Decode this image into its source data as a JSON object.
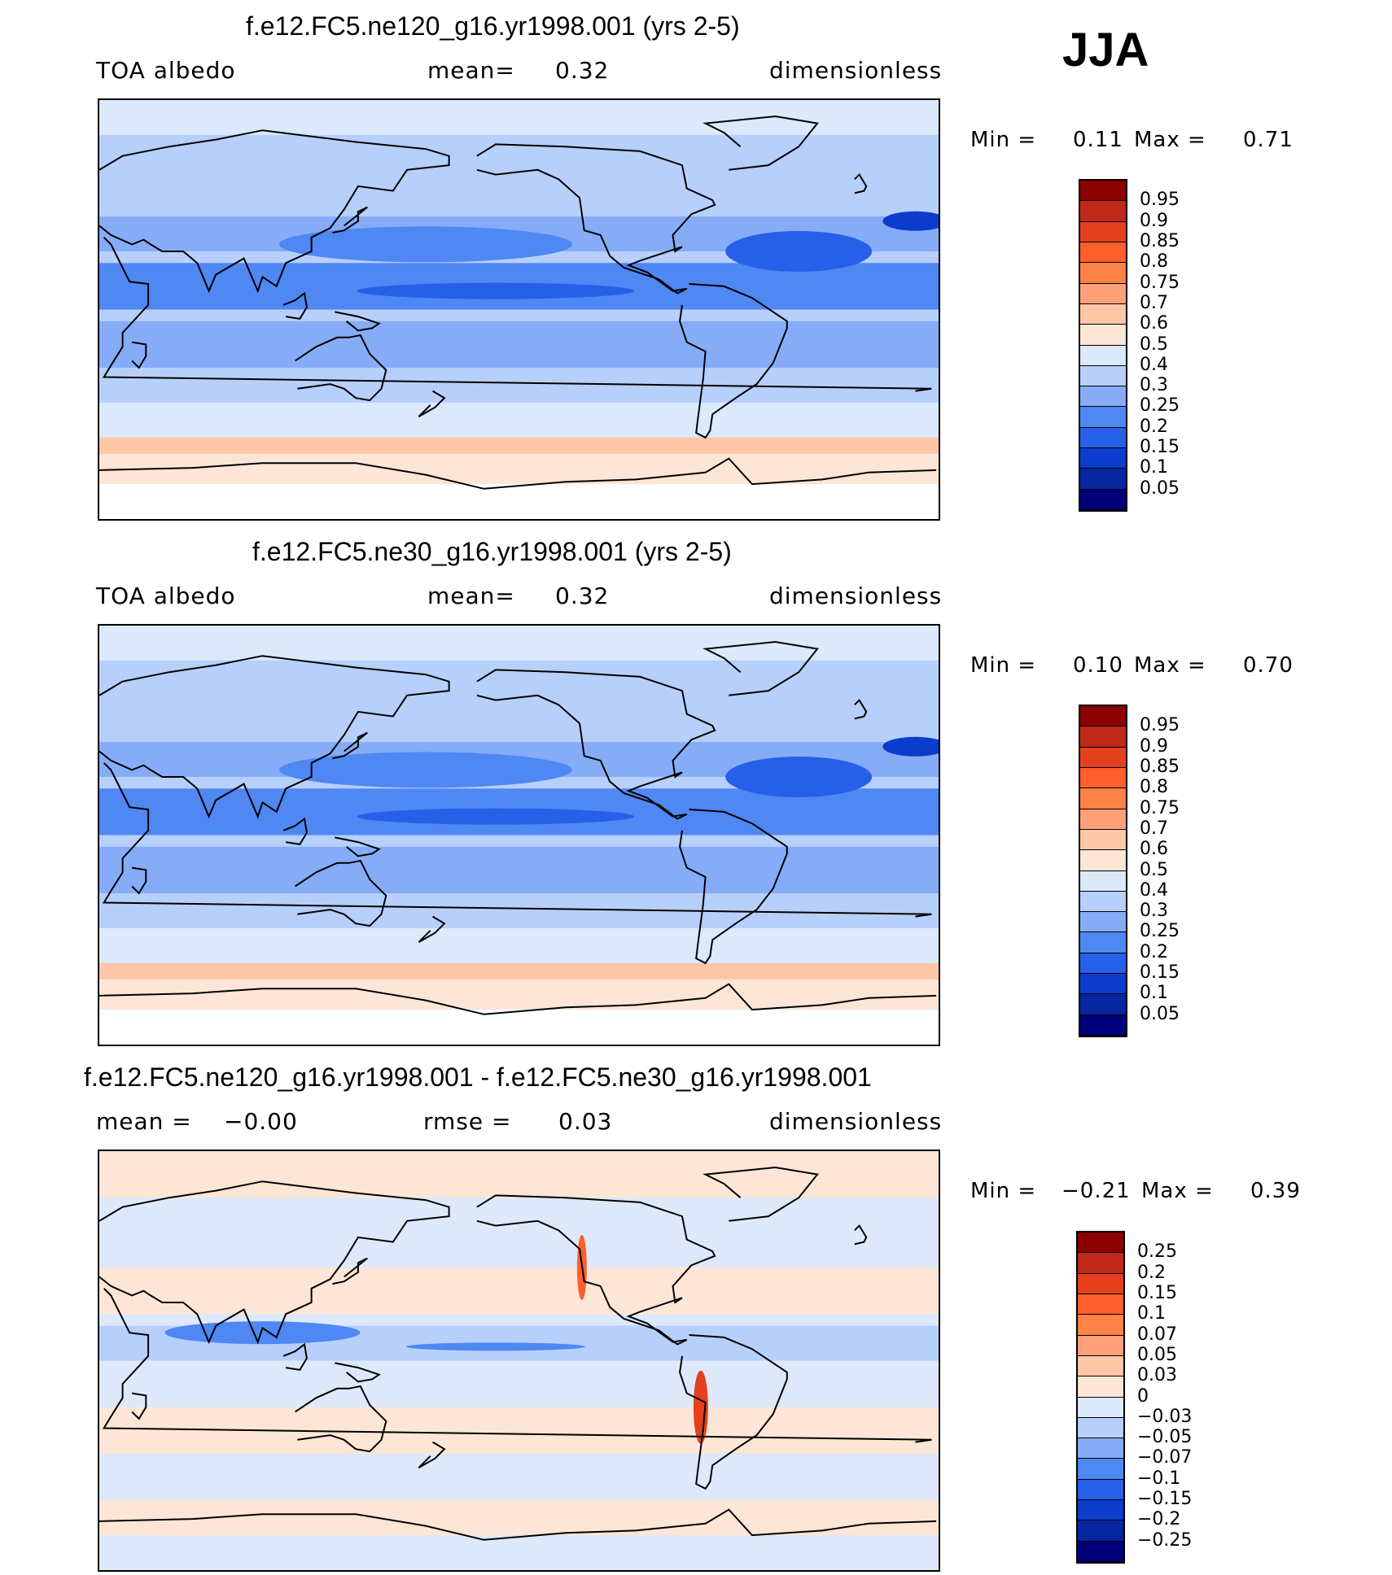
{
  "season": "JJA",
  "panels": [
    {
      "title": "f.e12.FC5.ne120_g16.yr1998.001 (yrs 2-5)",
      "left_label": "TOA albedo",
      "center_label": "mean=",
      "center_value": "0.32",
      "right_label": "dimensionless",
      "min_label": "Min =",
      "min_value": "0.11",
      "max_label": "Max =",
      "max_value": "0.71",
      "field_type": "absolute",
      "colorbar": {
        "labels": [
          "0.95",
          "0.9",
          "0.85",
          "0.8",
          "0.75",
          "0.7",
          "0.6",
          "0.5",
          "0.4",
          "0.3",
          "0.25",
          "0.2",
          "0.15",
          "0.1",
          "0.05"
        ],
        "colors": [
          "#8b0000",
          "#c0281a",
          "#e5401e",
          "#fe5f2c",
          "#ff8247",
          "#ffa07a",
          "#ffc6a8",
          "#fde6d6",
          "#dbe9fb",
          "#b7cffb",
          "#86acf8",
          "#4f87f3",
          "#2660e8",
          "#0c3ccb",
          "#06259f",
          "#00007a"
        ]
      }
    },
    {
      "title": "f.e12.FC5.ne30_g16.yr1998.001 (yrs 2-5)",
      "left_label": "TOA albedo",
      "center_label": "mean=",
      "center_value": "0.32",
      "right_label": "dimensionless",
      "min_label": "Min =",
      "min_value": "0.10",
      "max_label": "Max =",
      "max_value": "0.70",
      "field_type": "absolute",
      "colorbar": {
        "labels": [
          "0.95",
          "0.9",
          "0.85",
          "0.8",
          "0.75",
          "0.7",
          "0.6",
          "0.5",
          "0.4",
          "0.3",
          "0.25",
          "0.2",
          "0.15",
          "0.1",
          "0.05"
        ],
        "colors": [
          "#8b0000",
          "#c0281a",
          "#e5401e",
          "#fe5f2c",
          "#ff8247",
          "#ffa07a",
          "#ffc6a8",
          "#fde6d6",
          "#dbe9fb",
          "#b7cffb",
          "#86acf8",
          "#4f87f3",
          "#2660e8",
          "#0c3ccb",
          "#06259f",
          "#00007a"
        ]
      }
    },
    {
      "title": "f.e12.FC5.ne120_g16.yr1998.001 - f.e12.FC5.ne30_g16.yr1998.001",
      "left_label": "mean =",
      "left_value": "−0.00",
      "center_label": "rmse =",
      "center_value": "0.03",
      "right_label": "dimensionless",
      "min_label": "Min =",
      "min_value": "−0.21",
      "max_label": "Max =",
      "max_value": "0.39",
      "field_type": "difference",
      "colorbar": {
        "labels": [
          "0.25",
          "0.2",
          "0.15",
          "0.1",
          "0.07",
          "0.05",
          "0.03",
          "0",
          "−0.03",
          "−0.05",
          "−0.07",
          "−0.1",
          "−0.15",
          "−0.2",
          "−0.25"
        ],
        "colors": [
          "#8b0000",
          "#c0281a",
          "#e5401e",
          "#fe5f2c",
          "#ff8247",
          "#ffa07a",
          "#ffc6a8",
          "#fde6d6",
          "#dbe9fb",
          "#b7cffb",
          "#86acf8",
          "#4f87f3",
          "#2660e8",
          "#0c3ccb",
          "#06259f",
          "#00007a"
        ]
      }
    }
  ]
}
